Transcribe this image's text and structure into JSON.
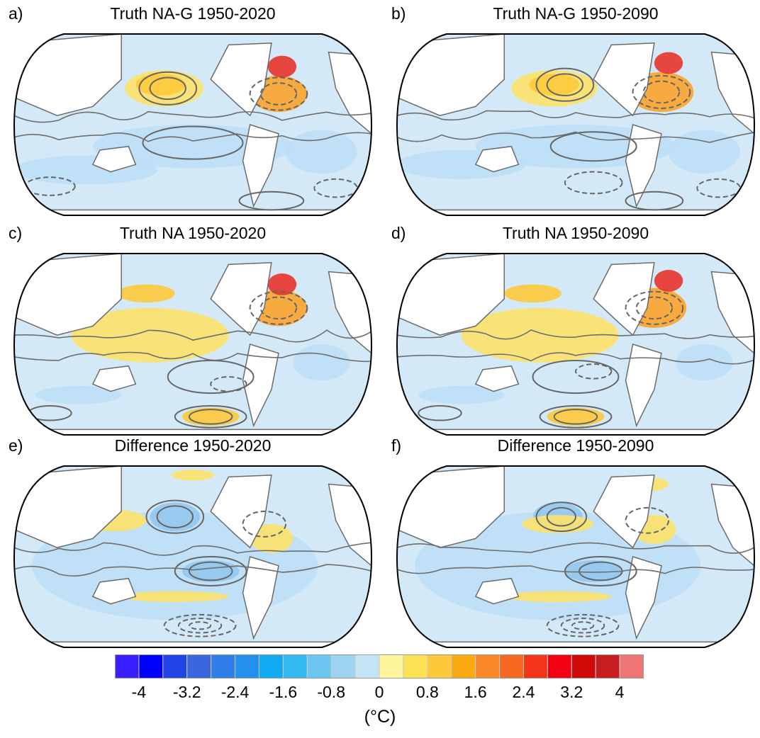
{
  "panels": [
    {
      "letter": "a)",
      "title": "Truth NA-G 1950-2020",
      "col": 0,
      "row": 0,
      "blobs": [
        [
          "#fde26a",
          0.42,
          0.3,
          0.11,
          0.1
        ],
        [
          "#fdc93a",
          0.41,
          0.28,
          0.07,
          0.06
        ],
        [
          "#f9a32a",
          0.74,
          0.33,
          0.08,
          0.1
        ],
        [
          "#e8342a",
          0.75,
          0.18,
          0.04,
          0.06
        ],
        [
          "#bcdff5",
          0.5,
          0.62,
          0.28,
          0.12
        ],
        [
          "#bcdff5",
          0.2,
          0.75,
          0.2,
          0.08
        ],
        [
          "#bcdff5",
          0.86,
          0.65,
          0.1,
          0.12
        ]
      ],
      "solid": [
        [
          0.43,
          0.3,
          0.08,
          0.09
        ],
        [
          0.43,
          0.3,
          0.05,
          0.06
        ],
        [
          0.5,
          0.6,
          0.14,
          0.09
        ],
        [
          0.72,
          0.92,
          0.09,
          0.05
        ]
      ],
      "dashed": [
        [
          0.74,
          0.33,
          0.08,
          0.09
        ],
        [
          0.74,
          0.33,
          0.05,
          0.06
        ],
        [
          0.1,
          0.84,
          0.07,
          0.05
        ],
        [
          0.9,
          0.85,
          0.06,
          0.05
        ]
      ]
    },
    {
      "letter": "b)",
      "title": "Truth NA-G 1950-2090",
      "col": 1,
      "row": 0,
      "blobs": [
        [
          "#fde26a",
          0.44,
          0.3,
          0.12,
          0.1
        ],
        [
          "#fdc93a",
          0.44,
          0.28,
          0.07,
          0.06
        ],
        [
          "#f9a32a",
          0.74,
          0.32,
          0.09,
          0.11
        ],
        [
          "#e8342a",
          0.76,
          0.16,
          0.04,
          0.06
        ],
        [
          "#bcdff5",
          0.5,
          0.62,
          0.28,
          0.12
        ],
        [
          "#bcdff5",
          0.18,
          0.72,
          0.18,
          0.08
        ],
        [
          "#bcdff5",
          0.86,
          0.65,
          0.1,
          0.12
        ]
      ],
      "solid": [
        [
          0.47,
          0.28,
          0.08,
          0.09
        ],
        [
          0.47,
          0.28,
          0.05,
          0.06
        ],
        [
          0.55,
          0.62,
          0.12,
          0.08
        ],
        [
          0.72,
          0.92,
          0.08,
          0.05
        ]
      ],
      "dashed": [
        [
          0.74,
          0.32,
          0.08,
          0.09
        ],
        [
          0.74,
          0.32,
          0.05,
          0.06
        ],
        [
          0.55,
          0.82,
          0.08,
          0.06
        ],
        [
          0.9,
          0.85,
          0.06,
          0.05
        ]
      ]
    },
    {
      "letter": "c)",
      "title": "Truth NA 1950-2020",
      "col": 0,
      "row": 1,
      "blobs": [
        [
          "#fde26a",
          0.38,
          0.45,
          0.22,
          0.15
        ],
        [
          "#fdc93a",
          0.37,
          0.22,
          0.08,
          0.05
        ],
        [
          "#f9a32a",
          0.74,
          0.3,
          0.08,
          0.1
        ],
        [
          "#e8342a",
          0.75,
          0.17,
          0.04,
          0.06
        ],
        [
          "#bcdff5",
          0.86,
          0.6,
          0.08,
          0.1
        ],
        [
          "#fdc93a",
          0.55,
          0.9,
          0.08,
          0.05
        ],
        [
          "#bcdff5",
          0.18,
          0.78,
          0.12,
          0.05
        ]
      ],
      "solid": [
        [
          0.55,
          0.68,
          0.12,
          0.09
        ],
        [
          0.55,
          0.9,
          0.1,
          0.06
        ],
        [
          0.55,
          0.9,
          0.06,
          0.04
        ],
        [
          0.1,
          0.88,
          0.06,
          0.04
        ]
      ],
      "dashed": [
        [
          0.74,
          0.3,
          0.08,
          0.09
        ],
        [
          0.74,
          0.3,
          0.05,
          0.06
        ],
        [
          0.6,
          0.72,
          0.05,
          0.04
        ]
      ]
    },
    {
      "letter": "d)",
      "title": "Truth NA 1950-2090",
      "col": 1,
      "row": 1,
      "blobs": [
        [
          "#fde26a",
          0.4,
          0.45,
          0.22,
          0.15
        ],
        [
          "#fdc93a",
          0.38,
          0.22,
          0.08,
          0.05
        ],
        [
          "#f9a32a",
          0.72,
          0.3,
          0.09,
          0.11
        ],
        [
          "#e8342a",
          0.76,
          0.15,
          0.04,
          0.06
        ],
        [
          "#bcdff5",
          0.86,
          0.6,
          0.08,
          0.1
        ],
        [
          "#fdc93a",
          0.5,
          0.9,
          0.08,
          0.05
        ],
        [
          "#bcdff5",
          0.18,
          0.78,
          0.12,
          0.05
        ]
      ],
      "solid": [
        [
          0.5,
          0.68,
          0.12,
          0.09
        ],
        [
          0.5,
          0.9,
          0.1,
          0.06
        ],
        [
          0.5,
          0.9,
          0.06,
          0.04
        ],
        [
          0.12,
          0.88,
          0.06,
          0.04
        ]
      ],
      "dashed": [
        [
          0.72,
          0.3,
          0.08,
          0.09
        ],
        [
          0.72,
          0.3,
          0.05,
          0.06
        ],
        [
          0.55,
          0.65,
          0.05,
          0.04
        ]
      ]
    },
    {
      "letter": "e)",
      "title": "Difference 1950-2020",
      "col": 0,
      "row": 2,
      "blobs": [
        [
          "#bcdff5",
          0.45,
          0.55,
          0.4,
          0.3
        ],
        [
          "#94c8ef",
          0.45,
          0.28,
          0.07,
          0.08
        ],
        [
          "#94c8ef",
          0.55,
          0.58,
          0.08,
          0.06
        ],
        [
          "#fde26a",
          0.28,
          0.3,
          0.09,
          0.06
        ],
        [
          "#fde26a",
          0.72,
          0.4,
          0.06,
          0.08
        ],
        [
          "#fde26a",
          0.45,
          0.72,
          0.15,
          0.03
        ],
        [
          "#fde26a",
          0.5,
          0.05,
          0.06,
          0.03
        ]
      ],
      "solid": [
        [
          0.45,
          0.28,
          0.08,
          0.09
        ],
        [
          0.45,
          0.28,
          0.05,
          0.06
        ],
        [
          0.55,
          0.58,
          0.1,
          0.08
        ],
        [
          0.55,
          0.58,
          0.06,
          0.05
        ]
      ],
      "dashed": [
        [
          0.7,
          0.32,
          0.06,
          0.07
        ],
        [
          0.52,
          0.88,
          0.1,
          0.06
        ],
        [
          0.52,
          0.88,
          0.06,
          0.04
        ],
        [
          0.52,
          0.88,
          0.03,
          0.02
        ]
      ]
    },
    {
      "letter": "f)",
      "title": "Difference 1950-2090",
      "col": 1,
      "row": 2,
      "blobs": [
        [
          "#bcdff5",
          0.45,
          0.55,
          0.4,
          0.3
        ],
        [
          "#94c8ef",
          0.45,
          0.28,
          0.07,
          0.08
        ],
        [
          "#94c8ef",
          0.55,
          0.58,
          0.08,
          0.06
        ],
        [
          "#fde26a",
          0.45,
          0.32,
          0.1,
          0.05
        ],
        [
          "#fde26a",
          0.72,
          0.35,
          0.06,
          0.08
        ],
        [
          "#fde26a",
          0.45,
          0.72,
          0.15,
          0.03
        ],
        [
          "#fde26a",
          0.7,
          0.1,
          0.06,
          0.04
        ]
      ],
      "solid": [
        [
          0.46,
          0.28,
          0.07,
          0.08
        ],
        [
          0.46,
          0.28,
          0.04,
          0.05
        ],
        [
          0.57,
          0.58,
          0.1,
          0.08
        ],
        [
          0.57,
          0.58,
          0.06,
          0.05
        ]
      ],
      "dashed": [
        [
          0.7,
          0.3,
          0.06,
          0.07
        ],
        [
          0.52,
          0.88,
          0.1,
          0.06
        ],
        [
          0.52,
          0.88,
          0.06,
          0.04
        ],
        [
          0.52,
          0.88,
          0.03,
          0.02
        ]
      ]
    }
  ],
  "colorbar": {
    "colors": [
      "#3a1fff",
      "#0000ff",
      "#2144e6",
      "#3a67dd",
      "#2f7de8",
      "#2591ee",
      "#12aaf2",
      "#31b9f0",
      "#6cc4f0",
      "#9dd3f1",
      "#c4e3f5",
      "#fdf69a",
      "#fde253",
      "#fdc93a",
      "#fba913",
      "#f98826",
      "#f6681f",
      "#f5351a",
      "#f50012",
      "#cf0a08",
      "#c81d20",
      "#ef7474"
    ],
    "tick_labels": [
      "-4",
      "-3.2",
      "-2.4",
      "-1.6",
      "-0.8",
      "0",
      "0.8",
      "1.6",
      "2.4",
      "3.2",
      "4"
    ],
    "units": "(°C)"
  }
}
